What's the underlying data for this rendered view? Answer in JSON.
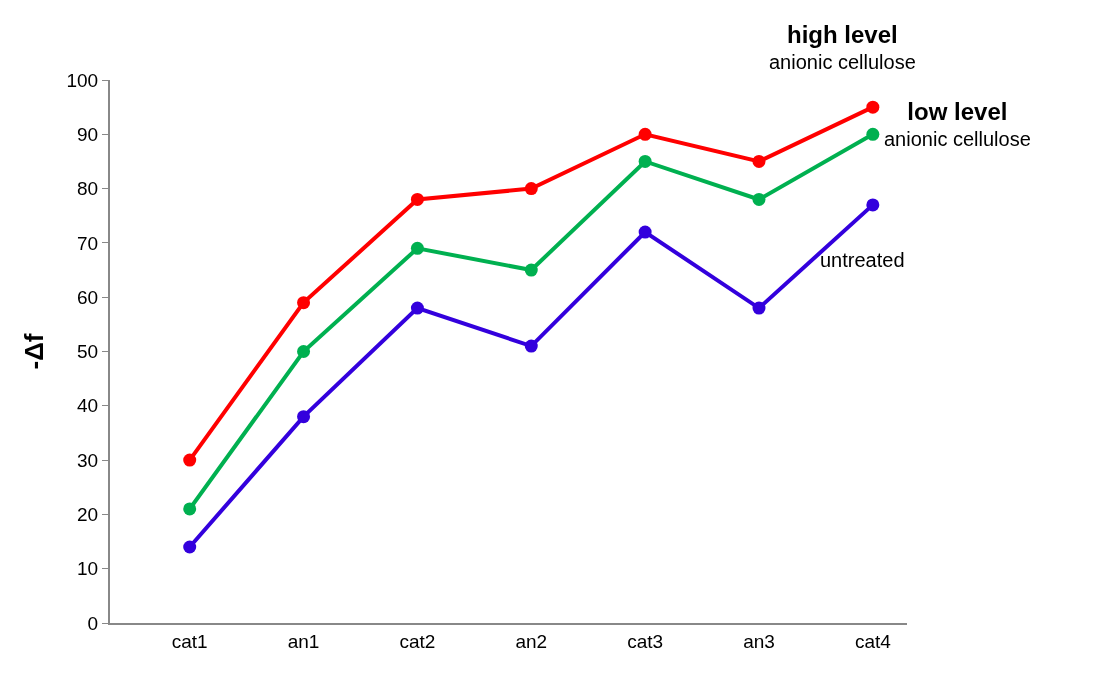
{
  "chart_data": {
    "type": "line",
    "ylabel": "-Δf",
    "categories": [
      "cat1",
      "an1",
      "cat2",
      "an2",
      "cat3",
      "an3",
      "cat4"
    ],
    "series": [
      {
        "name": "high level\nanionic cellulose",
        "color": "#ff0000",
        "values": [
          30,
          59,
          78,
          80,
          90,
          85,
          95
        ]
      },
      {
        "name": "low level\nanionic cellulose",
        "color": "#00b050",
        "values": [
          21,
          50,
          69,
          65,
          85,
          78,
          90
        ]
      },
      {
        "name": "untreated",
        "color": "#3300dd",
        "values": [
          14,
          38,
          58,
          51,
          72,
          58,
          77
        ]
      }
    ],
    "ylim": [
      0,
      100
    ],
    "yticks": [
      0,
      10,
      20,
      30,
      40,
      50,
      60,
      70,
      80,
      90,
      100
    ],
    "legend": false,
    "marker": "circle",
    "line_style": "solid"
  }
}
